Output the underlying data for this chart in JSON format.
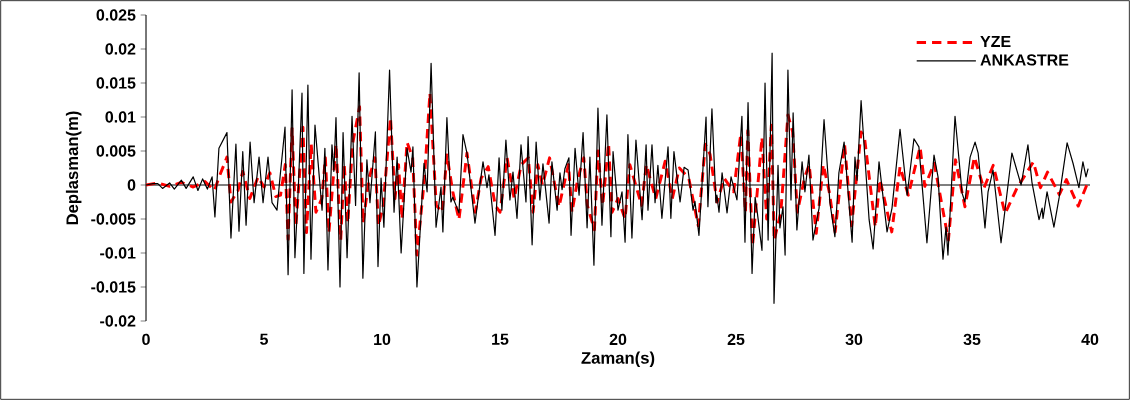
{
  "chart_data": {
    "type": "line",
    "xlabel": "Zaman(s)",
    "ylabel": "Deplasman(m)",
    "xlim": [
      0,
      40
    ],
    "xticks": [
      0,
      5,
      10,
      15,
      20,
      25,
      30,
      35,
      40
    ],
    "ylim": [
      -0.02,
      0.025
    ],
    "yticks": [
      -0.02,
      -0.015,
      -0.01,
      -0.005,
      0,
      0.005,
      0.01,
      0.015,
      0.02,
      0.025
    ],
    "legend": "top right",
    "marker": "none",
    "grid": false,
    "ref_lines": [
      {
        "axis": "y",
        "value": 0,
        "color": "#000000"
      }
    ],
    "series": [
      {
        "name": "YZE",
        "color": "#ff0000",
        "line_style": "dashed",
        "x": [
          0,
          0.5,
          1.0,
          1.5,
          2.0,
          2.5,
          2.9,
          3.1,
          3.43,
          3.6,
          3.9,
          4.1,
          4.4,
          4.75,
          5.0,
          5.25,
          5.5,
          5.7,
          5.9,
          6.02,
          6.19,
          6.35,
          6.65,
          6.8,
          7.0,
          7.2,
          7.45,
          7.6,
          7.75,
          8.05,
          8.25,
          8.4,
          8.55,
          8.75,
          9.05,
          9.2,
          9.45,
          9.7,
          9.85,
          10.05,
          10.36,
          10.55,
          10.7,
          10.85,
          11.06,
          11.3,
          11.48,
          11.8,
          12.03,
          12.3,
          12.55,
          12.75,
          13.0,
          13.26,
          13.6,
          13.95,
          14.2,
          14.5,
          14.8,
          15.0,
          15.3,
          15.6,
          15.9,
          16.2,
          16.4,
          16.6,
          16.8,
          17.1,
          17.5,
          17.9,
          18.05,
          18.3,
          18.55,
          18.7,
          19.0,
          19.15,
          19.35,
          19.6,
          19.75,
          20.0,
          20.3,
          20.5,
          21.0,
          21.2,
          21.6,
          22.0,
          22.3,
          22.6,
          23.0,
          23.4,
          23.7,
          23.9,
          24.2,
          24.5,
          24.9,
          25.2,
          25.4,
          25.5,
          25.7,
          26.1,
          26.3,
          26.5,
          26.62,
          26.9,
          27.2,
          27.4,
          27.6,
          27.9,
          28.1,
          28.4,
          28.7,
          28.95,
          29.2,
          29.6,
          29.9,
          30.3,
          30.45,
          30.9,
          31.1,
          31.6,
          31.95,
          32.3,
          32.8,
          33.0,
          33.4,
          34.0,
          34.3,
          34.7,
          35.1,
          35.5,
          35.9,
          36.4,
          36.9,
          37.6,
          37.9,
          38.2,
          38.7,
          39.0,
          39.5,
          39.9
        ],
        "values": [
          0,
          0.0003,
          -0.0002,
          0.0004,
          -0.0003,
          0.0005,
          -0.0008,
          0.0012,
          0.0041,
          -0.0025,
          -0.0008,
          0.002,
          -0.002,
          0.0012,
          -0.0003,
          0.0018,
          -0.0017,
          -0.0015,
          0.003,
          -0.008,
          0.0083,
          -0.006,
          0.0085,
          -0.007,
          0.006,
          -0.004,
          -0.002,
          0.004,
          -0.007,
          0.006,
          -0.0081,
          0.003,
          -0.0056,
          0.006,
          0.0115,
          -0.0056,
          0.001,
          0.004,
          -0.006,
          -0.003,
          0.0099,
          -0.002,
          0.003,
          -0.005,
          0.0063,
          0.004,
          -0.0103,
          0.001,
          0.0135,
          -0.003,
          -0.004,
          0.0044,
          -0.001,
          -0.0051,
          0.0047,
          -0.004,
          0.001,
          0.0027,
          -0.003,
          -0.004,
          0.004,
          -0.002,
          0.003,
          0.004,
          -0.004,
          0.003,
          0.0,
          0.004,
          -0.0032,
          0.003,
          -0.004,
          0.001,
          0.004,
          -0.003,
          -0.0066,
          0.005,
          -0.003,
          0.0061,
          -0.004,
          -0.002,
          -0.005,
          0.003,
          -0.003,
          0.003,
          -0.002,
          0.0035,
          -0.002,
          0.0025,
          0.001,
          -0.006,
          0.006,
          0.0045,
          -0.0025,
          0.001,
          -0.001,
          0.0075,
          -0.004,
          0.008,
          -0.009,
          0.007,
          -0.005,
          0.0088,
          -0.0081,
          -0.004,
          0.0103,
          0.0078,
          -0.004,
          0.001,
          0.003,
          -0.0071,
          0.003,
          -0.001,
          -0.0069,
          0.006,
          -0.006,
          0.0078,
          0.0068,
          -0.0062,
          0.0008,
          -0.0069,
          0.0027,
          -0.0015,
          0.0056,
          -0.0002,
          0.0032,
          -0.0081,
          0.0037,
          -0.0032,
          0.0041,
          -0.0005,
          0.0029,
          -0.0042,
          -0.0005,
          0.0034,
          -0.0004,
          0.0019,
          -0.0014,
          0.0008,
          -0.0031,
          0.0003
        ]
      },
      {
        "name": "ANKASTRE",
        "color": "#000000",
        "line_style": "solid",
        "x": [
          0,
          0.3,
          0.5,
          0.7,
          1.0,
          1.2,
          1.5,
          1.7,
          2.0,
          2.2,
          2.4,
          2.6,
          2.8,
          2.92,
          3.09,
          3.43,
          3.6,
          3.81,
          3.94,
          4.1,
          4.24,
          4.41,
          4.58,
          4.79,
          4.96,
          5.17,
          5.34,
          5.55,
          5.68,
          5.89,
          6.02,
          6.19,
          6.31,
          6.46,
          6.61,
          6.69,
          6.86,
          6.99,
          7.16,
          7.46,
          7.58,
          7.71,
          7.88,
          7.96,
          8.05,
          8.22,
          8.35,
          8.52,
          8.73,
          8.88,
          9.03,
          9.19,
          9.36,
          9.49,
          9.72,
          9.83,
          9.96,
          10.08,
          10.32,
          10.51,
          10.64,
          10.81,
          11.06,
          11.23,
          11.31,
          11.48,
          11.78,
          11.91,
          12.08,
          12.29,
          12.5,
          12.58,
          12.75,
          12.92,
          13.0,
          13.26,
          13.43,
          13.6,
          13.94,
          14.11,
          14.28,
          14.45,
          14.53,
          14.79,
          14.96,
          15.08,
          15.25,
          15.42,
          15.55,
          15.72,
          15.89,
          16.1,
          16.19,
          16.36,
          16.53,
          16.69,
          16.82,
          17.08,
          17.2,
          17.42,
          17.54,
          17.63,
          17.75,
          17.92,
          18.01,
          18.18,
          18.35,
          18.52,
          18.69,
          18.81,
          18.98,
          19.15,
          19.32,
          19.53,
          19.7,
          19.79,
          20.0,
          20.17,
          20.3,
          20.42,
          20.59,
          20.76,
          21.02,
          21.19,
          21.27,
          21.44,
          21.57,
          21.69,
          21.86,
          22.12,
          22.24,
          22.37,
          22.63,
          22.8,
          22.97,
          23.18,
          23.26,
          23.43,
          23.73,
          23.81,
          23.98,
          24.15,
          24.19,
          24.28,
          24.41,
          24.62,
          24.79,
          25.04,
          25.25,
          25.38,
          25.51,
          25.68,
          25.81,
          25.89,
          26.1,
          26.23,
          26.36,
          26.53,
          26.61,
          26.78,
          26.86,
          26.99,
          27.08,
          27.2,
          27.33,
          27.42,
          27.58,
          27.8,
          27.92,
          28.09,
          28.26,
          28.52,
          28.73,
          28.98,
          29.19,
          29.36,
          29.58,
          29.92,
          30.04,
          30.13,
          30.3,
          30.64,
          30.81,
          31.06,
          31.4,
          31.61,
          31.95,
          32.25,
          32.54,
          32.75,
          33.09,
          33.39,
          33.56,
          33.77,
          33.9,
          33.98,
          34.28,
          34.58,
          34.7,
          34.92,
          35.13,
          35.26,
          35.55,
          35.68,
          35.89,
          36.02,
          36.23,
          36.69,
          37.08,
          37.37,
          37.54,
          37.84,
          37.97,
          38.01,
          38.18,
          38.47,
          38.69,
          39.03,
          39.28,
          39.53,
          39.7,
          39.83,
          39.92
        ],
        "values": [
          0,
          0.0002,
          0.0002,
          -0.0005,
          0.0003,
          -0.0006,
          0.0007,
          -0.0005,
          0.0012,
          -0.0008,
          0.0009,
          -0.0006,
          0.0012,
          -0.0047,
          0.0054,
          0.0077,
          -0.0078,
          0.006,
          -0.0068,
          0.0049,
          -0.0059,
          0.0063,
          -0.0026,
          0.0041,
          -0.0026,
          0.0041,
          -0.0026,
          -0.0037,
          0.0012,
          0.0085,
          -0.0132,
          0.014,
          -0.0107,
          0.0,
          0.0135,
          -0.013,
          0.0147,
          -0.0109,
          0.0088,
          -0.0037,
          0.0054,
          -0.0125,
          0.0059,
          0.002,
          0.0099,
          -0.015,
          0.0077,
          -0.0107,
          0.0101,
          -0.003,
          0.0165,
          -0.0137,
          0.0037,
          -0.0026,
          0.0078,
          -0.012,
          0.001,
          -0.0062,
          0.0169,
          -0.004,
          0.0041,
          -0.01,
          0.0054,
          0.0019,
          0.0056,
          -0.015,
          0.0032,
          -0.001,
          0.0179,
          -0.0062,
          -0.0003,
          -0.0069,
          0.0099,
          -0.0025,
          -0.0018,
          -0.0041,
          0.0074,
          0.0047,
          -0.0056,
          -0.001,
          0.0034,
          -0.0004,
          0.0015,
          -0.0074,
          0.004,
          -0.0037,
          0.0066,
          -0.0022,
          0.0019,
          -0.0049,
          0.0059,
          -0.0025,
          0.0071,
          -0.0088,
          0.0063,
          -0.0022,
          0.0031,
          -0.0056,
          0.0034,
          -0.0037,
          0.0018,
          -0.0007,
          0.0024,
          0.004,
          -0.0074,
          0.0054,
          -0.0015,
          0.0077,
          -0.0063,
          0.0041,
          -0.0118,
          0.0113,
          -0.0059,
          0.0103,
          -0.0076,
          0.0049,
          -0.0037,
          -0.001,
          -0.0084,
          0.0074,
          -0.0078,
          0.0066,
          -0.0051,
          0.0059,
          -0.0037,
          0.0059,
          -0.0026,
          0.0029,
          -0.0049,
          0.0056,
          -0.0049,
          0.0049,
          -0.0025,
          0.0026,
          0.0022,
          -0.0037,
          -0.0024,
          -0.0074,
          0.01,
          -0.0032,
          0.0112,
          -0.0026,
          -0.0015,
          -0.004,
          0.0018,
          -0.0041,
          0.0012,
          -0.0022,
          0.0101,
          -0.0084,
          0.0121,
          -0.013,
          -0.0018,
          -0.0037,
          -0.0096,
          0.015,
          -0.0081,
          0.0194,
          -0.0174,
          0.0029,
          -0.0063,
          -0.0032,
          -0.0103,
          0.0169,
          -0.0022,
          0.0106,
          -0.0066,
          0.0034,
          -0.001,
          0.0044,
          -0.0081,
          -0.0034,
          0.0096,
          -0.0026,
          -0.0076,
          0.0018,
          0.0063,
          -0.0084,
          0.0041,
          0.0007,
          0.0124,
          -0.0051,
          -0.0094,
          0.0034,
          -0.0069,
          -0.0034,
          0.0082,
          -0.0015,
          0.0068,
          0.0056,
          -0.0085,
          0.0044,
          0.0012,
          -0.0109,
          -0.0062,
          -0.0103,
          0.0101,
          -0.0012,
          -0.0025,
          0.0041,
          0.0063,
          0.0047,
          -0.0063,
          -0.001,
          0.0022,
          -0.0018,
          -0.0085,
          0.0047,
          0.0,
          0.0059,
          0.0004,
          -0.0051,
          -0.0034,
          -0.0049,
          -0.001,
          -0.0062,
          -0.0019,
          0.0062,
          0.0032,
          -0.0004,
          0.0034,
          0.0012,
          0.0024
        ]
      }
    ]
  }
}
